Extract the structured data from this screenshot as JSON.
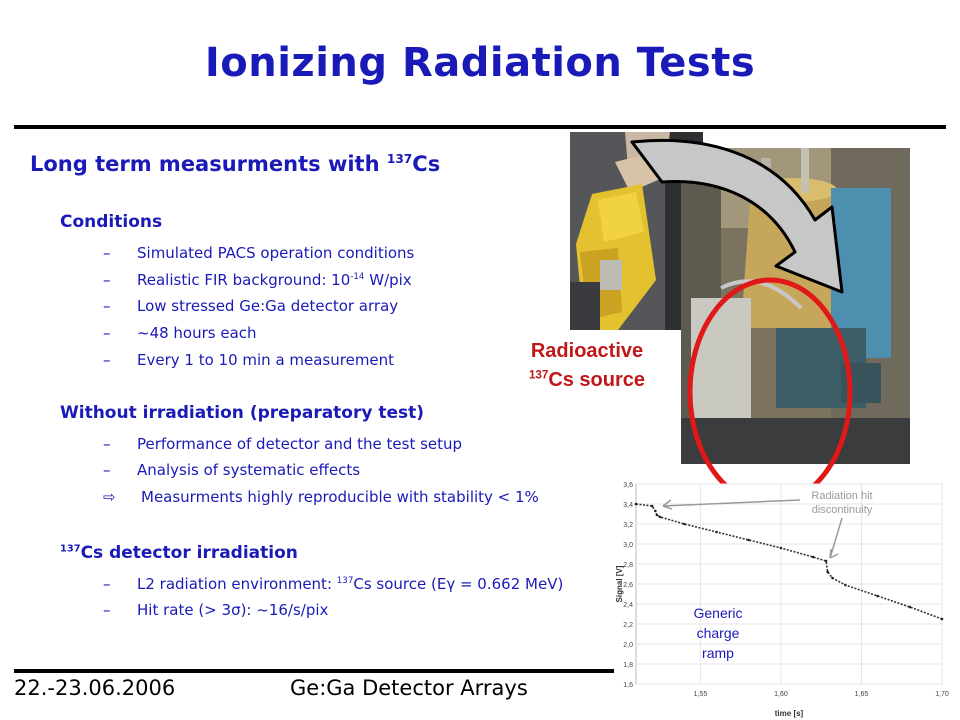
{
  "slide": {
    "title": "Ionizing Radiation Tests",
    "subtitle": {
      "text": "Long term measurments with ",
      "isotope_sup": "137",
      "isotope": "Cs"
    },
    "sections": [
      {
        "heading": "Conditions",
        "bullets": [
          {
            "marker": "–",
            "text": "Simulated PACS operation conditions"
          },
          {
            "marker": "–",
            "text": "Realistic FIR background: 10",
            "sup": "-14",
            "after": " W/pix"
          },
          {
            "marker": "–",
            "text": "Low stressed Ge:Ga detector array"
          },
          {
            "marker": "–",
            "text": "~48 hours each"
          },
          {
            "marker": "–",
            "text": "Every 1 to 10 min a measurement"
          }
        ]
      },
      {
        "heading": "Without irradiation (preparatory test)",
        "bullets": [
          {
            "marker": "–",
            "text": "Performance of detector and the test setup"
          },
          {
            "marker": "–",
            "text": "Analysis of systematic effects"
          },
          {
            "marker": "⇨",
            "text": "Measurments highly reproducible with stability < 1%"
          }
        ]
      },
      {
        "heading_sup": "137",
        "heading": "Cs detector irradiation",
        "bullets": [
          {
            "marker": "–",
            "text": "L2 radiation environment: ",
            "sup": "137",
            "after": "Cs source (Eγ = 0.662 MeV)"
          },
          {
            "marker": "–",
            "text": "Hit rate (> 3σ): ~16/s/pix"
          }
        ]
      }
    ],
    "photo_label": {
      "line1": "Radioactive",
      "sup": "137",
      "line2": "Cs source"
    },
    "footer": {
      "date": "22.-23.06.2006",
      "title": "Ge:Ga Detector Arrays"
    },
    "colors": {
      "title": "#1a1ab8",
      "body": "#1a1ab8",
      "label": "#c01818",
      "ellipse": "#e01818"
    }
  },
  "chart_data": {
    "type": "line",
    "xlabel": "time [s]",
    "ylabel": "Signal [V]",
    "xlim": [
      1.51,
      1.7
    ],
    "ylim": [
      1.6,
      3.6
    ],
    "x_ticks": [
      "1,55",
      "1,60",
      "1,65",
      "1,70"
    ],
    "y_ticks": [
      "1,6",
      "1,8",
      "2,0",
      "2,2",
      "2,4",
      "2,6",
      "2,8",
      "3,0",
      "3,2",
      "3,4",
      "3,6"
    ],
    "x_tick_values": [
      1.55,
      1.6,
      1.65,
      1.7
    ],
    "y_tick_values": [
      1.6,
      1.8,
      2.0,
      2.2,
      2.4,
      2.6,
      2.8,
      3.0,
      3.2,
      3.4,
      3.6
    ],
    "series": [
      {
        "x": [
          1.51,
          1.52,
          1.522,
          1.523,
          1.525,
          1.54,
          1.56,
          1.58,
          1.6,
          1.62,
          1.628,
          1.629,
          1.632,
          1.64,
          1.66,
          1.68,
          1.7
        ],
        "y": [
          3.4,
          3.38,
          3.33,
          3.29,
          3.27,
          3.2,
          3.12,
          3.04,
          2.96,
          2.87,
          2.83,
          2.72,
          2.66,
          2.59,
          2.48,
          2.37,
          2.25
        ]
      }
    ],
    "annotations": [
      {
        "text_line1": "Radiation hit",
        "text_line2": "discontinuity",
        "x": 1.523,
        "y": 3.39
      },
      {
        "x": 1.628,
        "y": 2.82
      }
    ],
    "label": {
      "line1": "Generic",
      "line2": "charge",
      "line3": "ramp"
    },
    "grid": true
  }
}
